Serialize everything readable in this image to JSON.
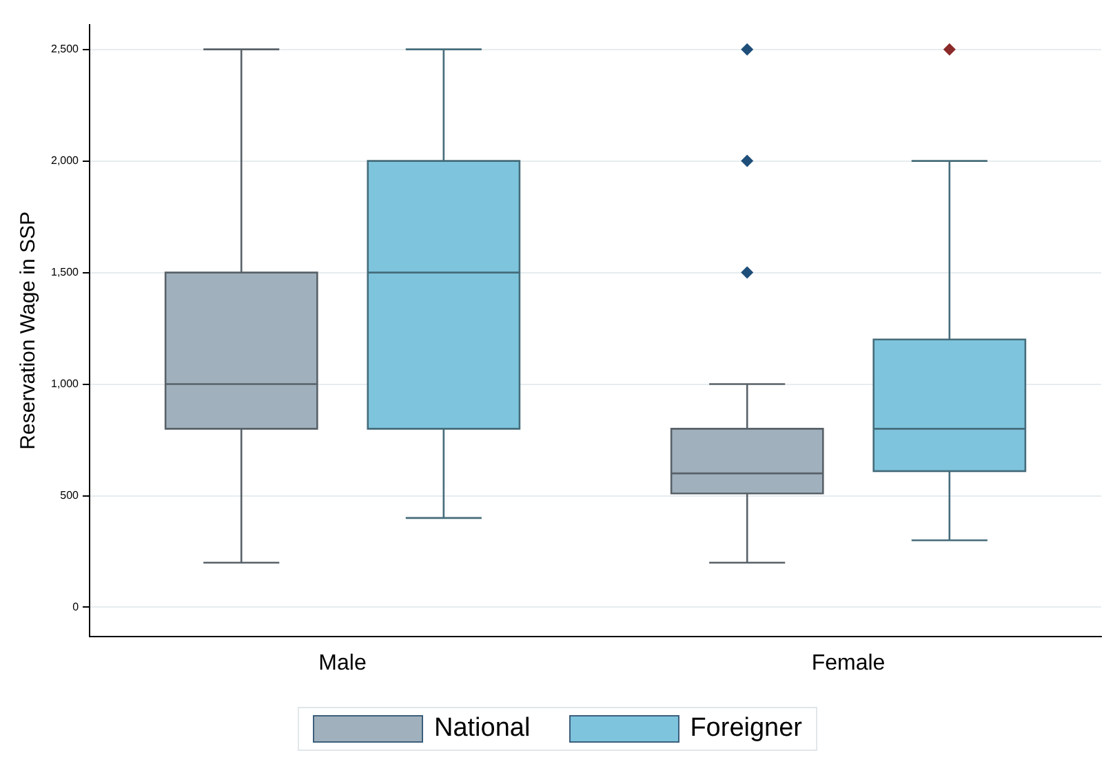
{
  "chart_data": {
    "type": "box",
    "ylabel": "Reservation Wage in SSP",
    "categories": [
      "Male",
      "Female"
    ],
    "series": [
      {
        "name": "National",
        "color": "#a0b1bd",
        "boxes": [
          {
            "low": 200,
            "q1": 800,
            "median": 1000,
            "q3": 1500,
            "high": 2500
          },
          {
            "low": 200,
            "q1": 510,
            "median": 600,
            "q3": 800,
            "high": 1000,
            "outliers": [
              1500,
              2000,
              2500
            ]
          }
        ]
      },
      {
        "name": "Foreigner",
        "color": "#7ec4dd",
        "boxes": [
          {
            "low": 400,
            "q1": 800,
            "median": 1500,
            "q3": 2000,
            "high": 2500
          },
          {
            "low": 300,
            "q1": 610,
            "median": 800,
            "q3": 1200,
            "high": 2000,
            "outliers": [
              2500
            ]
          }
        ]
      }
    ],
    "ylim": [
      -130,
      2610
    ],
    "yticks": [
      {
        "value": 0,
        "label": "0"
      },
      {
        "value": 500,
        "label": "500"
      },
      {
        "value": 1000,
        "label": "1,000"
      },
      {
        "value": 1500,
        "label": "1,500"
      },
      {
        "value": 2000,
        "label": "2,000"
      },
      {
        "value": 2500,
        "label": "2,500"
      }
    ],
    "grid": "y",
    "legend": "bottom",
    "marker": "diamond"
  }
}
